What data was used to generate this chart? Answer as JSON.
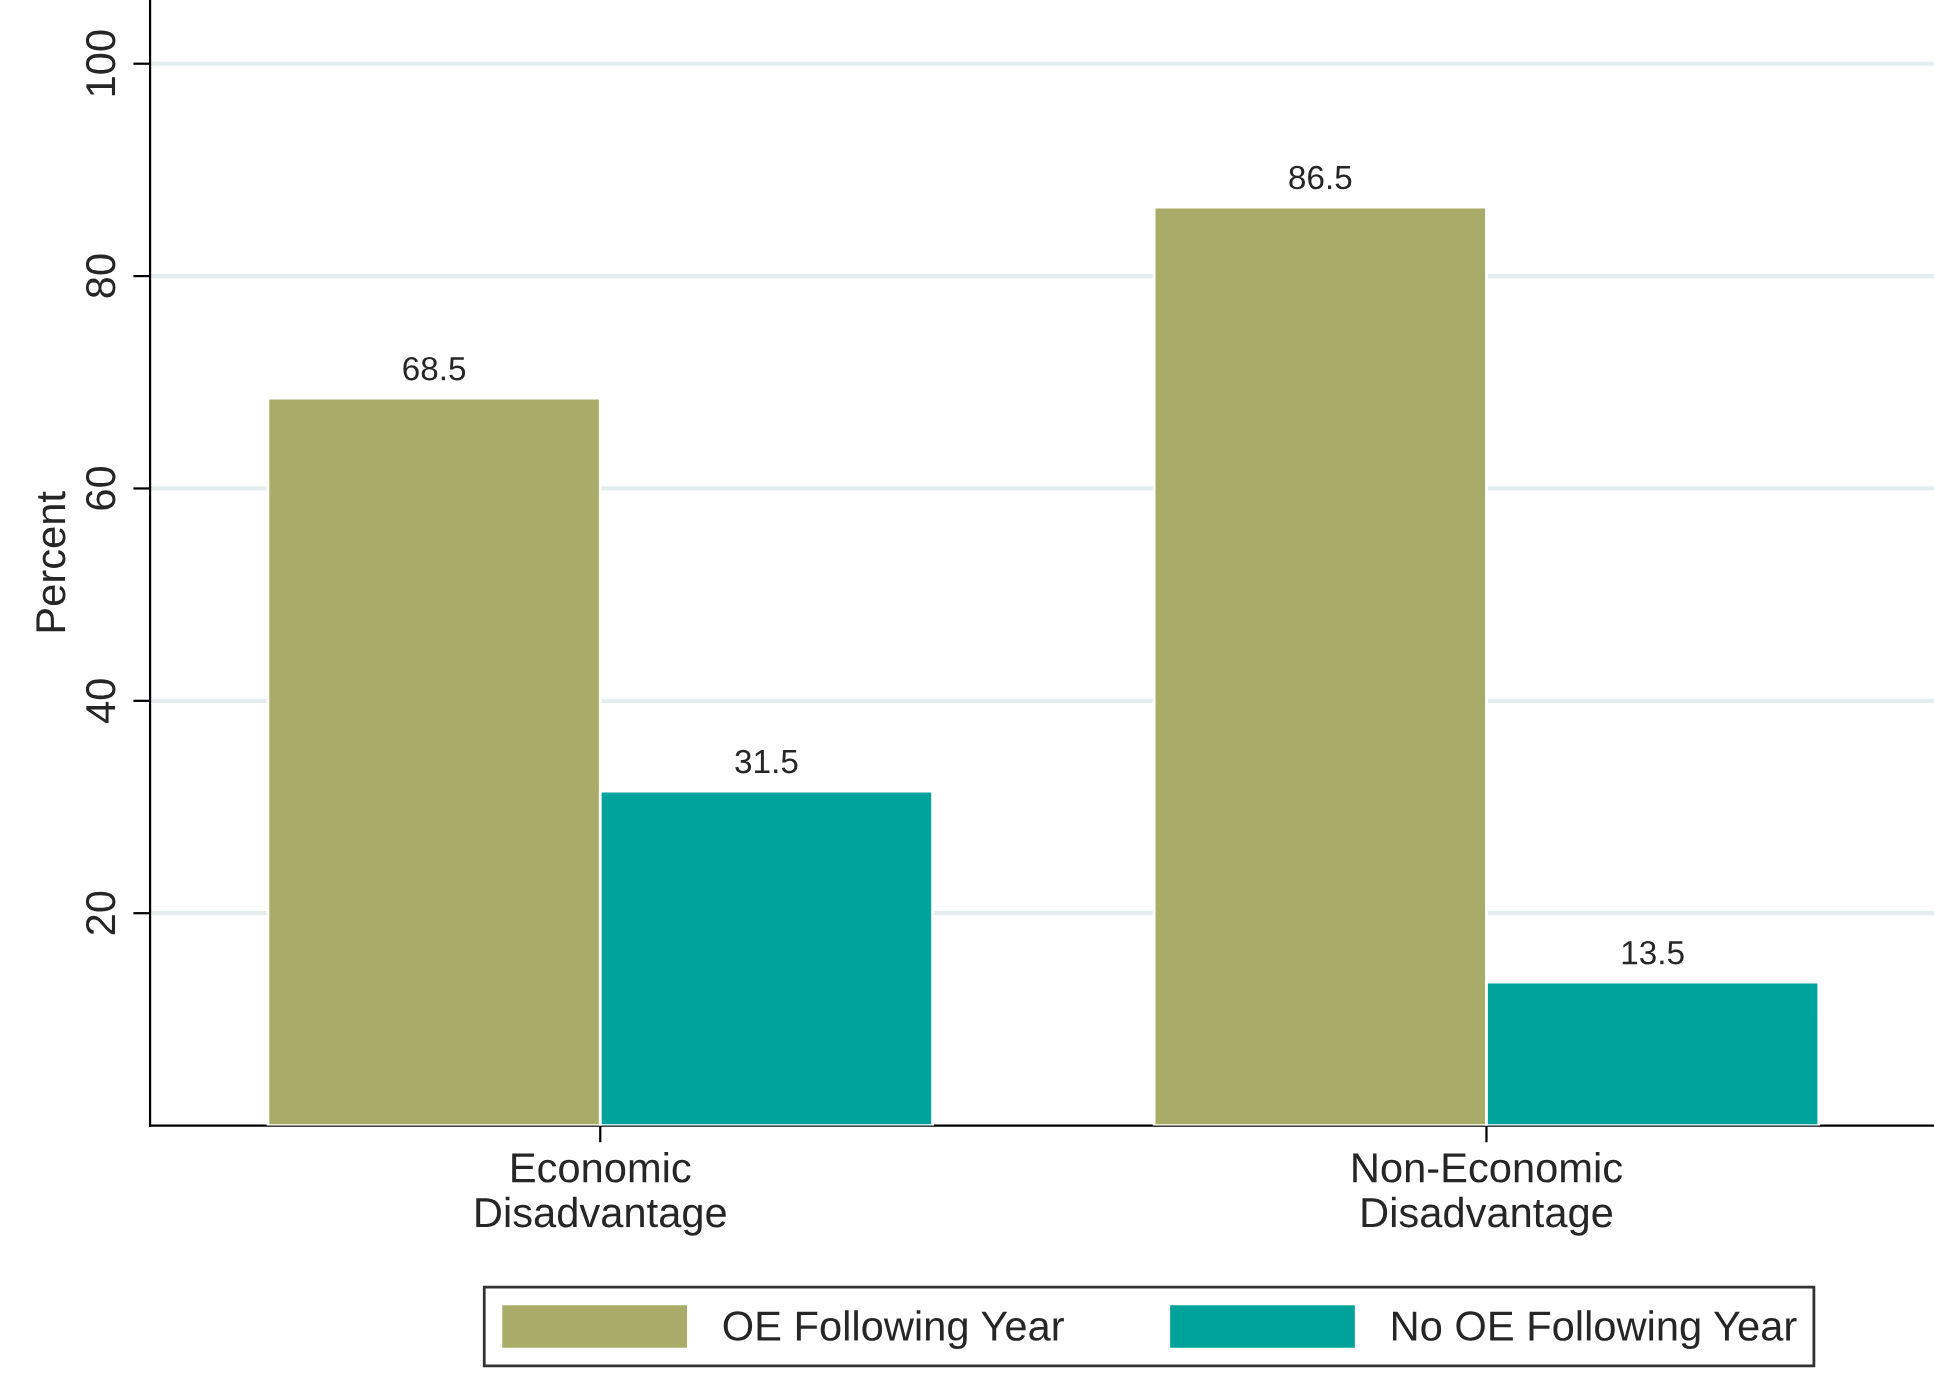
{
  "chart_data": {
    "type": "bar",
    "ylabel": "Percent",
    "categories": [
      "Economic\nDisadvantage",
      "Non-Economic\nDisadvantage"
    ],
    "series": [
      {
        "name": "OE Following Year",
        "color": "#a9ab69",
        "values": [
          68.5,
          86.5
        ]
      },
      {
        "name": "No OE Following Year",
        "color": "#00a39b",
        "values": [
          31.5,
          13.5
        ]
      }
    ],
    "ylim": [
      0,
      106
    ],
    "yticks": [
      20,
      40,
      60,
      80,
      100
    ],
    "grid": "y",
    "data_labels": true,
    "legend": "bottom"
  }
}
